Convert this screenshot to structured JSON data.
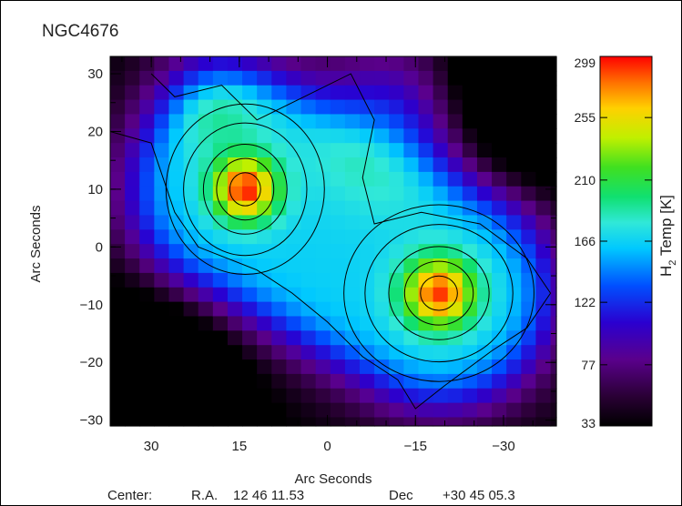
{
  "title": "NGC4676",
  "chart_data": {
    "type": "heatmap",
    "xlabel": "Arc Seconds",
    "ylabel": "Arc Seconds",
    "x_ticks": [
      "30",
      "15",
      "0",
      "−15",
      "−30"
    ],
    "x_tick_values": [
      30,
      15,
      0,
      -15,
      -30
    ],
    "y_ticks": [
      "30",
      "20",
      "10",
      "0",
      "−10",
      "−20",
      "−30"
    ],
    "y_tick_values": [
      30,
      20,
      10,
      0,
      -10,
      -20,
      -30
    ],
    "xlim": [
      37,
      -39
    ],
    "ylim": [
      -31,
      33
    ],
    "x_reversed": true,
    "colorbar": {
      "label_main": "H",
      "label_sub": "2",
      "label_rest": " Temp [K]",
      "ticks": [
        "299",
        "255",
        "210",
        "166",
        "122",
        "77",
        "33"
      ],
      "tick_values": [
        299,
        255,
        210,
        166,
        122,
        77,
        33
      ],
      "range": [
        33,
        299
      ]
    },
    "peaks": [
      {
        "x": 14,
        "y": 10,
        "value": 299
      },
      {
        "x": -19,
        "y": -8,
        "value": 299
      }
    ],
    "contour_levels": [
      122,
      166,
      210,
      255,
      290
    ],
    "footer": {
      "center_label": "Center:",
      "ra_label": "R.A.",
      "ra_value": "12 46 11.53",
      "dec_label": "Dec",
      "dec_value": "+30 45 05.3"
    }
  }
}
